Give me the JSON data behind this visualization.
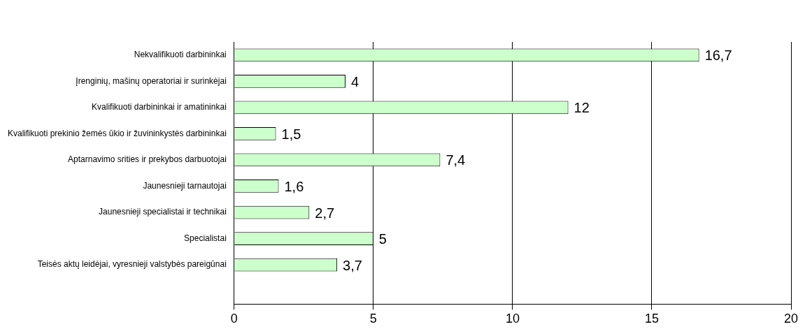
{
  "chart_data": {
    "type": "bar",
    "orientation": "horizontal",
    "categories": [
      "Nekvalifikuoti darbininkai",
      "Įrenginių, mašinų operatoriai ir surinkėjai",
      "Kvalifikuoti darbininkai ir amatininkai",
      "Kvalifikuoti prekinio žemės ūkio ir žuvininkystės darbininkai",
      "Aptarnavimo srities ir prekybos darbuotojai",
      "Jaunesnieji tarnautojai",
      "Jaunesnieji specialistai ir technikai",
      "Specialistai",
      "Teisės aktų leidėjai, vyresnieji valstybės pareigūnai",
      null
    ],
    "values": [
      16.7,
      4,
      12,
      1.5,
      7.4,
      1.6,
      2.7,
      5,
      3.7,
      null
    ],
    "value_labels": [
      "16,7",
      "4",
      "12",
      "1,5",
      "7,4",
      "1,6",
      "2,7",
      "5",
      "3,7",
      null
    ],
    "color": "#ccffcc",
    "xlim": [
      0,
      20
    ],
    "xticks": [
      0,
      5,
      10,
      15,
      20
    ],
    "grid": "x",
    "legend": false
  }
}
